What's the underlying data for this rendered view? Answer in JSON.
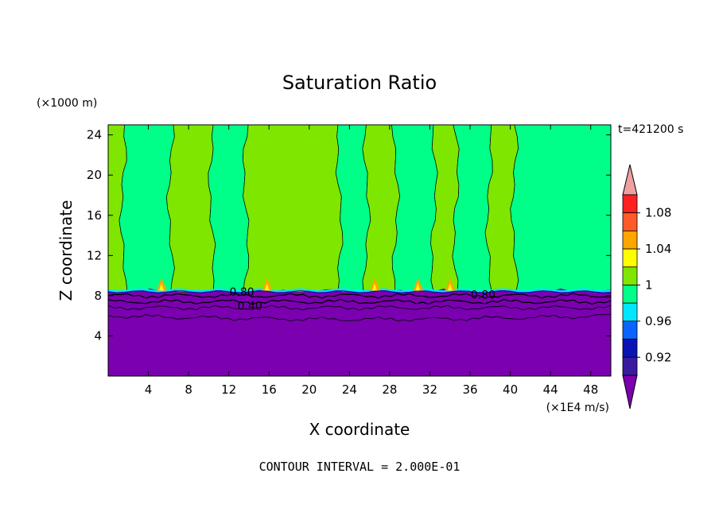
{
  "chart_data": {
    "type": "contour",
    "title": "Saturation Ratio",
    "xlabel": "X coordinate",
    "ylabel": "Z coordinate",
    "x_unit": "(×1E4 m/s)",
    "z_unit": "(×1000 m)",
    "time_label": "t=421200 s",
    "footer": "CONTOUR INTERVAL = 2.000E-01",
    "xlim": [
      0,
      50
    ],
    "zlim": [
      0,
      25
    ],
    "x_ticks": [
      "4",
      "8",
      "12",
      "16",
      "20",
      "24",
      "28",
      "32",
      "36",
      "40",
      "44",
      "48"
    ],
    "z_ticks": [
      "4",
      "8",
      "12",
      "16",
      "20",
      "24"
    ],
    "contour_labels": [
      {
        "text": "0.80",
        "x": 13.3,
        "z": 8.4
      },
      {
        "text": "0.40",
        "x": 14.1,
        "z": 7.0
      },
      {
        "text": "0.80",
        "x": 37.3,
        "z": 8.1
      }
    ],
    "colorbar": {
      "labels": [
        "1.08",
        "1.04",
        "1",
        "0.96",
        "0.92"
      ],
      "levels": [
        {
          "range": "<0.90",
          "color": "#7a00b0"
        },
        {
          "range": "0.90-0.92",
          "color": "#3a1ba0"
        },
        {
          "range": "0.92-0.94",
          "color": "#0a14b4"
        },
        {
          "range": "0.94-0.96",
          "color": "#0a64ff"
        },
        {
          "range": "0.96-0.98",
          "color": "#00e6ff"
        },
        {
          "range": "0.98-1.00",
          "color": "#00ff88"
        },
        {
          "range": "1.00-1.02",
          "color": "#7fe600"
        },
        {
          "range": "1.02-1.04",
          "color": "#ffff00"
        },
        {
          "range": "1.04-1.06",
          "color": "#ffa500"
        },
        {
          "range": "1.06-1.08",
          "color": "#ff5a28"
        },
        {
          "range": "1.08-1.10",
          "color": "#ff2020"
        },
        {
          "range": ">1.10",
          "color": "#f0a0a0"
        }
      ]
    },
    "field": {
      "upper_regions": [
        {
          "x": [
            0,
            1.5
          ],
          "value": "1.00-1.02"
        },
        {
          "x": [
            1.5,
            6.2
          ],
          "value": "0.98-1.00"
        },
        {
          "x": [
            6.2,
            10.3
          ],
          "value": "1.00-1.02"
        },
        {
          "x": [
            10.3,
            13.7
          ],
          "value": "0.98-1.00"
        },
        {
          "x": [
            13.7,
            23.0
          ],
          "value": "1.00-1.02"
        },
        {
          "x": [
            23.0,
            25.7
          ],
          "value": "0.98-1.00"
        },
        {
          "x": [
            25.7,
            28.6
          ],
          "value": "1.00-1.02"
        },
        {
          "x": [
            28.6,
            32.4
          ],
          "value": "0.98-1.00"
        },
        {
          "x": [
            32.4,
            34.6
          ],
          "value": "1.00-1.02"
        },
        {
          "x": [
            34.6,
            37.9
          ],
          "value": "0.98-1.00"
        },
        {
          "x": [
            37.9,
            40.4
          ],
          "value": "1.00-1.02"
        },
        {
          "x": [
            40.4,
            50.0
          ],
          "value": "0.98-1.00"
        }
      ],
      "dry_layer_top_z": 8.5,
      "supersaturated_spots_x": [
        5.3,
        15.8,
        26.5,
        30.8,
        34.0
      ],
      "dark_isolines_z": [
        8.0,
        7.4,
        6.8,
        6.0
      ]
    },
    "colors": {
      "axis": "#000000",
      "isoline": "#000000"
    }
  }
}
